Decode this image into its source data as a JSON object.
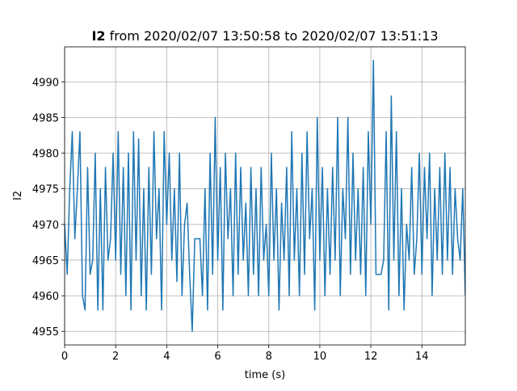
{
  "chart_data": {
    "type": "line",
    "title": {
      "bold": "I2",
      "rest": "from 2020/02/07 13:50:58 to 2020/02/07 13:51:13"
    },
    "x_label": "time (s)",
    "y_label": "I2",
    "xlim": [
      0,
      15.7
    ],
    "ylim": [
      4953.1,
      4994.9
    ],
    "xticks": [
      0,
      2,
      4,
      6,
      8,
      10,
      12,
      14
    ],
    "yticks": [
      4955,
      4960,
      4965,
      4970,
      4975,
      4980,
      4985,
      4990
    ],
    "grid": true,
    "series": [
      {
        "color": "#1f77b4",
        "x": [
          0,
          0.1,
          0.2,
          0.3,
          0.4,
          0.5,
          0.6,
          0.7,
          0.8,
          0.9,
          1,
          1.1,
          1.2,
          1.3,
          1.4,
          1.5,
          1.6,
          1.7,
          1.8,
          1.9,
          2,
          2.1,
          2.2,
          2.3,
          2.4,
          2.5,
          2.6,
          2.7,
          2.8,
          2.9,
          3,
          3.1,
          3.2,
          3.3,
          3.4,
          3.5,
          3.6,
          3.7,
          3.8,
          3.9,
          4,
          4.1,
          4.2,
          4.3,
          4.4,
          4.5,
          4.6,
          4.7,
          4.8,
          4.9,
          5,
          5.1,
          5.2,
          5.3,
          5.4,
          5.5,
          5.6,
          5.7,
          5.8,
          5.9,
          6,
          6.1,
          6.2,
          6.3,
          6.4,
          6.5,
          6.6,
          6.7,
          6.8,
          6.9,
          7,
          7.1,
          7.2,
          7.3,
          7.4,
          7.5,
          7.6,
          7.7,
          7.8,
          7.9,
          8,
          8.1,
          8.2,
          8.3,
          8.4,
          8.5,
          8.6,
          8.7,
          8.8,
          8.9,
          9,
          9.1,
          9.2,
          9.3,
          9.4,
          9.5,
          9.6,
          9.7,
          9.8,
          9.9,
          10,
          10.1,
          10.2,
          10.3,
          10.4,
          10.5,
          10.6,
          10.7,
          10.8,
          10.9,
          11,
          11.1,
          11.2,
          11.3,
          11.4,
          11.5,
          11.6,
          11.7,
          11.8,
          11.9,
          12,
          12.1,
          12.2,
          12.3,
          12.4,
          12.5,
          12.6,
          12.7,
          12.8,
          12.9,
          13,
          13.1,
          13.2,
          13.3,
          13.4,
          13.5,
          13.6,
          13.7,
          13.8,
          13.9,
          14,
          14.1,
          14.2,
          14.3,
          14.4,
          14.5,
          14.6,
          14.7,
          14.8,
          14.9,
          15,
          15.1,
          15.2,
          15.3,
          15.4,
          15.5,
          15.6,
          15.7
        ],
        "values": [
          4970,
          4963,
          4975,
          4983,
          4968,
          4975,
          4983,
          4960,
          4958,
          4978,
          4963,
          4965,
          4980,
          4958,
          4975,
          4958,
          4978,
          4965,
          4968,
          4980,
          4965,
          4983,
          4963,
          4978,
          4960,
          4980,
          4958,
          4983,
          4965,
          4982,
          4960,
          4975,
          4958,
          4978,
          4963,
          4983,
          4968,
          4975,
          4958,
          4983,
          4970,
          4980,
          4965,
          4975,
          4962,
          4980,
          4960,
          4970,
          4973,
          4963,
          4955,
          4968,
          4968,
          4968,
          4960,
          4975,
          4958,
          4980,
          4963,
          4985,
          4965,
          4978,
          4958,
          4980,
          4968,
          4975,
          4960,
          4980,
          4963,
          4978,
          4965,
          4973,
          4960,
          4978,
          4963,
          4975,
          4960,
          4978,
          4965,
          4970,
          4960,
          4980,
          4965,
          4975,
          4958,
          4973,
          4965,
          4978,
          4960,
          4983,
          4965,
          4975,
          4960,
          4980,
          4963,
          4983,
          4968,
          4975,
          4958,
          4985,
          4965,
          4978,
          4960,
          4975,
          4963,
          4978,
          4965,
          4985,
          4960,
          4975,
          4968,
          4985,
          4963,
          4980,
          4965,
          4975,
          4963,
          4978,
          4960,
          4983,
          4970,
          4993,
          4963,
          4963,
          4963,
          4965,
          4983,
          4958,
          4988,
          4965,
          4983,
          4960,
          4975,
          4958,
          4970,
          4965,
          4978,
          4963,
          4968,
          4980,
          4963,
          4978,
          4968,
          4980,
          4960,
          4975,
          4965,
          4978,
          4963,
          4980,
          4965,
          4978,
          4963,
          4975,
          4968,
          4965,
          4975,
          4960
        ]
      }
    ]
  }
}
